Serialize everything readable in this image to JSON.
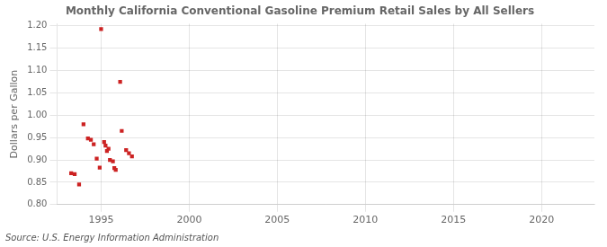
{
  "chart_data": {
    "type": "scatter",
    "title": "Monthly California Conventional Gasoline Premium Retail Sales by All Sellers",
    "ylabel": "Dollars per Gallon",
    "source": "Source: U.S. Energy Information Administration",
    "x": [
      1993.3,
      1993.5,
      1993.75,
      1994.0,
      1994.25,
      1994.42,
      1994.58,
      1994.75,
      1994.92,
      1995.0,
      1995.17,
      1995.25,
      1995.33,
      1995.42,
      1995.5,
      1995.67,
      1995.75,
      1995.83,
      1996.08,
      1996.17,
      1996.42,
      1996.58,
      1996.75
    ],
    "values": [
      0.87,
      0.868,
      0.845,
      0.98,
      0.948,
      0.945,
      0.935,
      0.903,
      0.883,
      1.193,
      0.94,
      0.932,
      0.92,
      0.925,
      0.9,
      0.897,
      0.882,
      0.878,
      1.075,
      0.965,
      0.922,
      0.915,
      0.908
    ],
    "color": "#cc2222",
    "marker": "square",
    "xlim": [
      1992.5,
      2023.0
    ],
    "ylim": [
      0.8,
      1.205
    ],
    "xticks": [
      1995,
      2000,
      2005,
      2010,
      2015,
      2020
    ],
    "yticks": [
      {
        "value": 0.8,
        "label": "0.80"
      },
      0.85,
      {
        "value": 0.9,
        "label": "0.90"
      },
      0.95,
      {
        "value": 1.0,
        "label": "1.00"
      },
      1.05,
      {
        "value": 1.1,
        "label": "1.10"
      },
      1.15,
      {
        "value": 1.2,
        "label": "1.20"
      }
    ],
    "grid": true
  }
}
